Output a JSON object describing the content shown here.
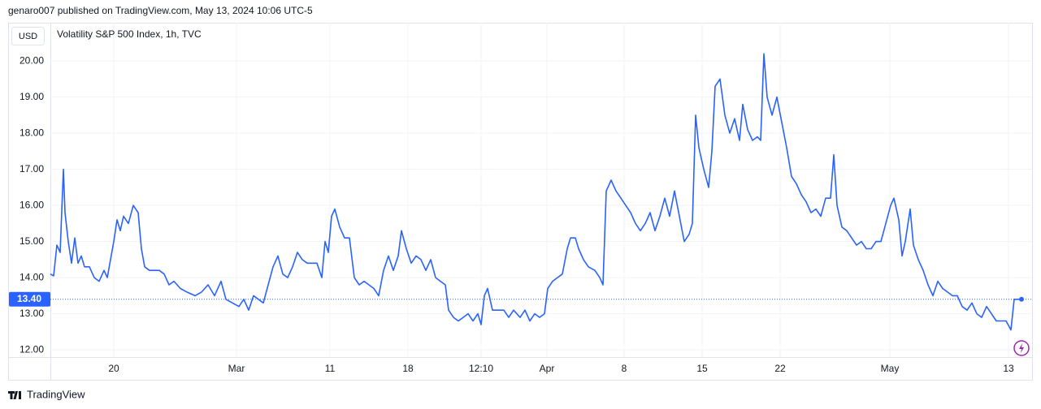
{
  "header": "genaro007 published on TradingView.com, May 13, 2024 10:06 UTC-5",
  "footer": "TradingView",
  "chart_data": {
    "type": "line",
    "currency": "USD",
    "title": "Volatility S&P 500 Index, 1h, TVC",
    "color": "#2962ff",
    "grid": true,
    "last_price": {
      "value": 13.4,
      "label": "13.40"
    },
    "xlim": [
      62,
      1270
    ],
    "ylim": [
      11.8,
      21.06
    ],
    "xticks": [
      {
        "value": 140,
        "label": "20"
      },
      {
        "value": 291,
        "label": "Mar"
      },
      {
        "value": 406,
        "label": "11"
      },
      {
        "value": 502,
        "label": "18"
      },
      {
        "value": 592,
        "label": "12:10"
      },
      {
        "value": 673,
        "label": "Apr"
      },
      {
        "value": 768,
        "label": "8"
      },
      {
        "value": 864,
        "label": "15"
      },
      {
        "value": 960,
        "label": "22"
      },
      {
        "value": 1095,
        "label": "May"
      },
      {
        "value": 1241,
        "label": "13"
      }
    ],
    "yticks": [
      {
        "value": 12,
        "label": "12.00"
      },
      {
        "value": 13,
        "label": "13.00"
      },
      {
        "value": 14,
        "label": "14.00"
      },
      {
        "value": 15,
        "label": "15.00"
      },
      {
        "value": 16,
        "label": "16.00"
      },
      {
        "value": 17,
        "label": "17.00"
      },
      {
        "value": 18,
        "label": "18.00"
      },
      {
        "value": 19,
        "label": "19.00"
      },
      {
        "value": 20,
        "label": "20.00"
      }
    ],
    "x": [
      62,
      66,
      70,
      74,
      78,
      80,
      84,
      88,
      92,
      96,
      100,
      104,
      110,
      116,
      122,
      128,
      132,
      136,
      140,
      144,
      148,
      152,
      158,
      164,
      170,
      174,
      178,
      184,
      190,
      196,
      202,
      208,
      214,
      222,
      230,
      240,
      248,
      256,
      264,
      272,
      278,
      286,
      294,
      300,
      306,
      312,
      318,
      324,
      330,
      336,
      342,
      348,
      354,
      360,
      366,
      372,
      378,
      384,
      390,
      396,
      400,
      404,
      408,
      412,
      418,
      424,
      430,
      436,
      442,
      448,
      454,
      460,
      466,
      472,
      478,
      484,
      490,
      494,
      500,
      506,
      512,
      518,
      524,
      530,
      536,
      542,
      548,
      552,
      558,
      564,
      570,
      576,
      582,
      588,
      592,
      596,
      600,
      606,
      614,
      620,
      626,
      632,
      640,
      646,
      652,
      658,
      664,
      670,
      674,
      680,
      686,
      692,
      698,
      702,
      708,
      712,
      718,
      724,
      732,
      738,
      742,
      746,
      752,
      758,
      764,
      770,
      776,
      782,
      788,
      794,
      800,
      806,
      812,
      818,
      824,
      830,
      836,
      842,
      848,
      852,
      856,
      860,
      866,
      872,
      876,
      880,
      886,
      892,
      898,
      904,
      910,
      914,
      920,
      926,
      932,
      936,
      940,
      944,
      950,
      956,
      962,
      968,
      974,
      980,
      986,
      992,
      998,
      1004,
      1010,
      1016,
      1022,
      1026,
      1030,
      1036,
      1042,
      1048,
      1054,
      1060,
      1066,
      1072,
      1078,
      1084,
      1090,
      1096,
      1100,
      1106,
      1110,
      1114,
      1120,
      1124,
      1130,
      1136,
      1142,
      1148,
      1154,
      1160,
      1166,
      1172,
      1178,
      1184,
      1190,
      1196,
      1202,
      1208,
      1214,
      1220,
      1226,
      1232,
      1238,
      1244,
      1248,
      1252,
      1257
    ],
    "values": [
      14.1,
      14.05,
      14.9,
      14.7,
      17.0,
      15.8,
      15.0,
      14.4,
      15.1,
      14.4,
      14.6,
      14.3,
      14.3,
      14.0,
      13.9,
      14.2,
      14.0,
      14.5,
      15.0,
      15.6,
      15.3,
      15.7,
      15.5,
      16.0,
      15.8,
      14.8,
      14.3,
      14.2,
      14.2,
      14.2,
      14.1,
      13.8,
      13.9,
      13.7,
      13.6,
      13.5,
      13.6,
      13.8,
      13.5,
      13.9,
      13.4,
      13.3,
      13.2,
      13.4,
      13.1,
      13.5,
      13.4,
      13.3,
      13.8,
      14.3,
      14.6,
      14.1,
      14.0,
      14.3,
      14.7,
      14.5,
      14.4,
      14.4,
      14.4,
      14.0,
      15.0,
      14.7,
      15.7,
      15.9,
      15.4,
      15.1,
      15.1,
      14.0,
      13.8,
      13.9,
      13.8,
      13.7,
      13.5,
      14.2,
      14.6,
      14.2,
      14.6,
      15.3,
      14.8,
      14.4,
      14.6,
      14.5,
      14.2,
      14.5,
      14.0,
      13.9,
      13.8,
      13.1,
      12.9,
      12.8,
      12.9,
      13.0,
      12.8,
      13.0,
      12.7,
      13.5,
      13.7,
      13.1,
      13.1,
      13.1,
      12.9,
      13.1,
      12.9,
      13.1,
      12.8,
      13.0,
      12.9,
      13.0,
      13.7,
      13.9,
      14.0,
      14.1,
      14.8,
      15.1,
      15.1,
      14.8,
      14.5,
      14.3,
      14.2,
      14.0,
      13.8,
      16.4,
      16.7,
      16.4,
      16.2,
      16.0,
      15.8,
      15.5,
      15.3,
      15.5,
      15.8,
      15.3,
      15.7,
      16.2,
      15.7,
      16.4,
      15.7,
      15.0,
      15.2,
      15.5,
      18.5,
      17.6,
      17.0,
      16.5,
      17.5,
      19.3,
      19.5,
      18.5,
      18.0,
      18.4,
      17.8,
      18.8,
      18.1,
      17.8,
      17.9,
      17.8,
      20.2,
      19.0,
      18.5,
      19.0,
      18.3,
      17.6,
      16.8,
      16.6,
      16.3,
      16.1,
      15.8,
      15.9,
      15.7,
      16.2,
      16.2,
      17.4,
      16.0,
      15.4,
      15.3,
      15.1,
      14.9,
      15.0,
      14.8,
      14.8,
      15.0,
      15.0,
      15.5,
      16.0,
      16.2,
      15.6,
      14.6,
      15.0,
      15.9,
      14.9,
      14.5,
      14.2,
      13.8,
      13.5,
      13.9,
      13.7,
      13.6,
      13.5,
      13.5,
      13.2,
      13.1,
      13.3,
      13.0,
      12.9,
      13.2,
      13.0,
      12.8,
      12.8,
      12.8,
      12.55,
      13.4,
      13.4,
      13.4
    ]
  }
}
